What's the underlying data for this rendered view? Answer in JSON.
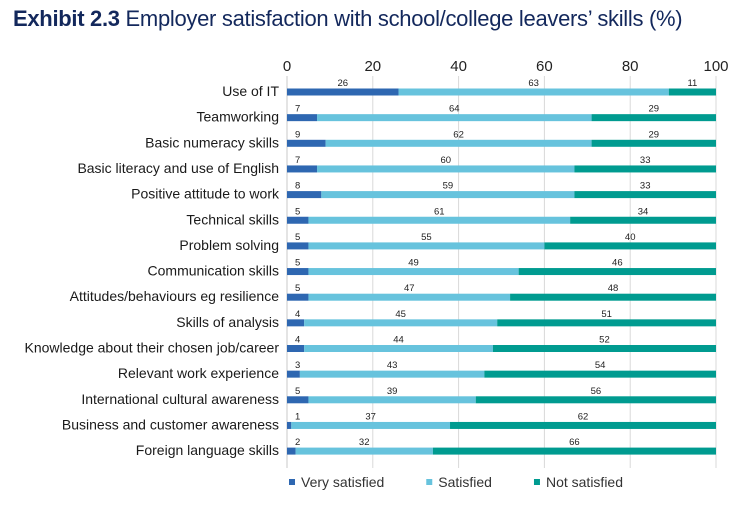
{
  "chart_data": {
    "type": "bar",
    "orientation": "horizontal",
    "stacked": true,
    "title_prefix": "Exhibit 2.3",
    "title": "Employer satisfaction with school/college leavers’ skills (%)",
    "xlabel": "",
    "ylabel": "",
    "xlim": [
      0,
      100
    ],
    "xticks": [
      0,
      20,
      40,
      60,
      80,
      100
    ],
    "grid": true,
    "legend_position": "bottom",
    "categories": [
      "Use of IT",
      "Teamworking",
      "Basic numeracy skills",
      "Basic literacy and use of English",
      "Positive attitude to work",
      "Technical skills",
      "Problem solving",
      "Communication skills",
      "Attitudes/behaviours eg resilience",
      "Skills of analysis",
      "Knowledge about their chosen job/career",
      "Relevant work experience",
      "International cultural awareness",
      "Business and customer awareness",
      "Foreign language skills"
    ],
    "series": [
      {
        "name": "Very satisfied",
        "color": "#2e67b1",
        "values": [
          26,
          7,
          9,
          7,
          8,
          5,
          5,
          5,
          5,
          4,
          4,
          3,
          5,
          1,
          2
        ]
      },
      {
        "name": "Satisfied",
        "color": "#67c3dd",
        "values": [
          63,
          64,
          62,
          60,
          59,
          61,
          55,
          49,
          47,
          45,
          44,
          43,
          39,
          37,
          32
        ]
      },
      {
        "name": "Not satisfied",
        "color": "#009b90",
        "values": [
          11,
          29,
          29,
          33,
          33,
          34,
          40,
          46,
          48,
          51,
          52,
          54,
          56,
          62,
          66
        ]
      }
    ]
  }
}
